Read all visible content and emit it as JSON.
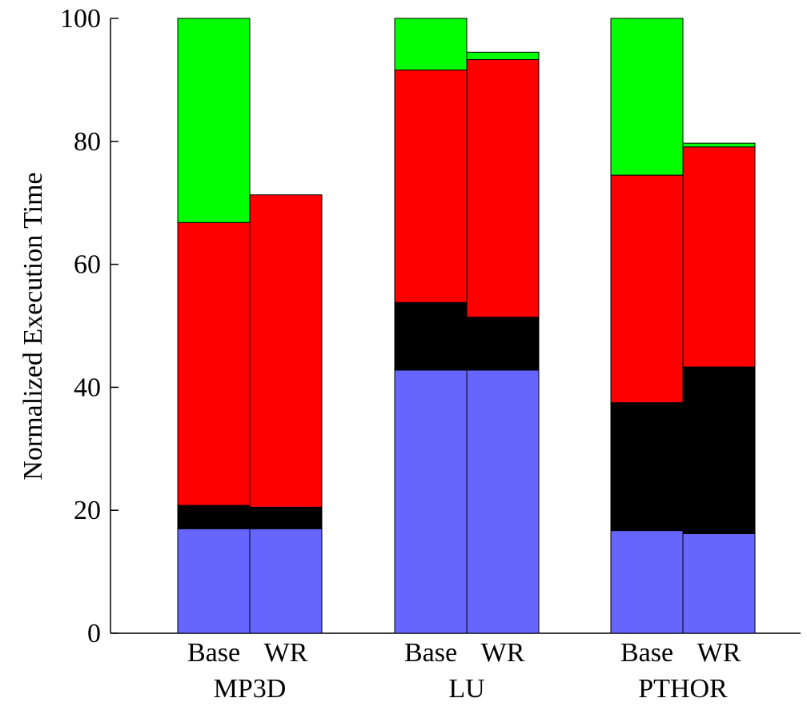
{
  "chart_data": {
    "type": "bar",
    "stacked": true,
    "title": "",
    "xlabel": "",
    "ylabel": "Normalized Execution Time",
    "ylim": [
      0,
      100
    ],
    "yticks": [
      0,
      20,
      40,
      60,
      80,
      100
    ],
    "grid": false,
    "legend": "none",
    "groups": [
      {
        "name": "MP3D",
        "bars": [
          {
            "label": "Base",
            "segments": [
              17.0,
              3.8,
              46.0,
              33.2
            ]
          },
          {
            "label": "WR",
            "segments": [
              17.0,
              3.5,
              50.8,
              0.0
            ]
          }
        ]
      },
      {
        "name": "LU",
        "bars": [
          {
            "label": "Base",
            "segments": [
              42.8,
              11.0,
              37.8,
              8.4
            ]
          },
          {
            "label": "WR",
            "segments": [
              42.8,
              8.6,
              41.9,
              1.2
            ]
          }
        ]
      },
      {
        "name": "PTHOR",
        "bars": [
          {
            "label": "Base",
            "segments": [
              16.7,
              20.8,
              37.0,
              25.5
            ]
          },
          {
            "label": "WR",
            "segments": [
              16.2,
              27.1,
              35.8,
              0.6
            ]
          }
        ]
      }
    ],
    "segment_colors": [
      "#6666ff",
      "#000000",
      "#ff0000",
      "#00ff00"
    ]
  }
}
